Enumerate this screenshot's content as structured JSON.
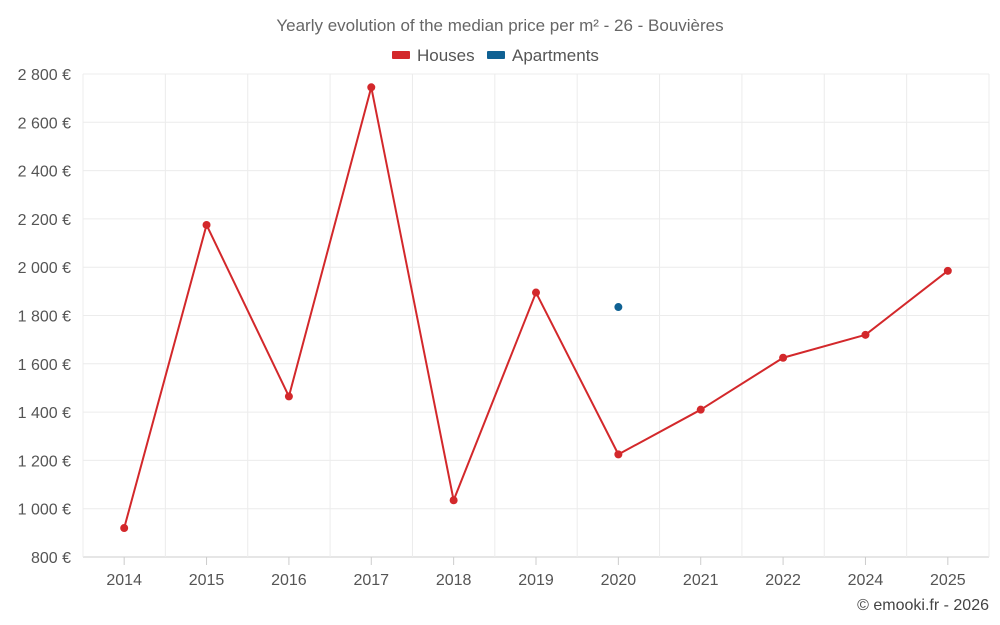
{
  "chart_data": {
    "type": "line",
    "title": "Yearly evolution of the median price per m² - 26 - Bouvières",
    "categories": [
      "2014",
      "2015",
      "2016",
      "2017",
      "2018",
      "2019",
      "2020",
      "2021",
      "2022",
      "2024",
      "2025"
    ],
    "series": [
      {
        "name": "Houses",
        "color": "#d3282b",
        "values": [
          920,
          2175,
          1465,
          2745,
          1035,
          1895,
          1225,
          1410,
          1625,
          1720,
          1985
        ]
      },
      {
        "name": "Apartments",
        "color": "#0f6193",
        "values": [
          null,
          null,
          null,
          null,
          null,
          null,
          1835,
          null,
          null,
          null,
          null
        ]
      }
    ],
    "y_ticks": [
      "800 €",
      "1 000 €",
      "1 200 €",
      "1 400 €",
      "1 600 €",
      "1 800 €",
      "2 000 €",
      "2 200 €",
      "2 400 €",
      "2 600 €",
      "2 800 €"
    ],
    "ylim": [
      800,
      2800
    ],
    "grid": true,
    "legend_position": "top-center",
    "credit": "© emooki.fr - 2026"
  }
}
